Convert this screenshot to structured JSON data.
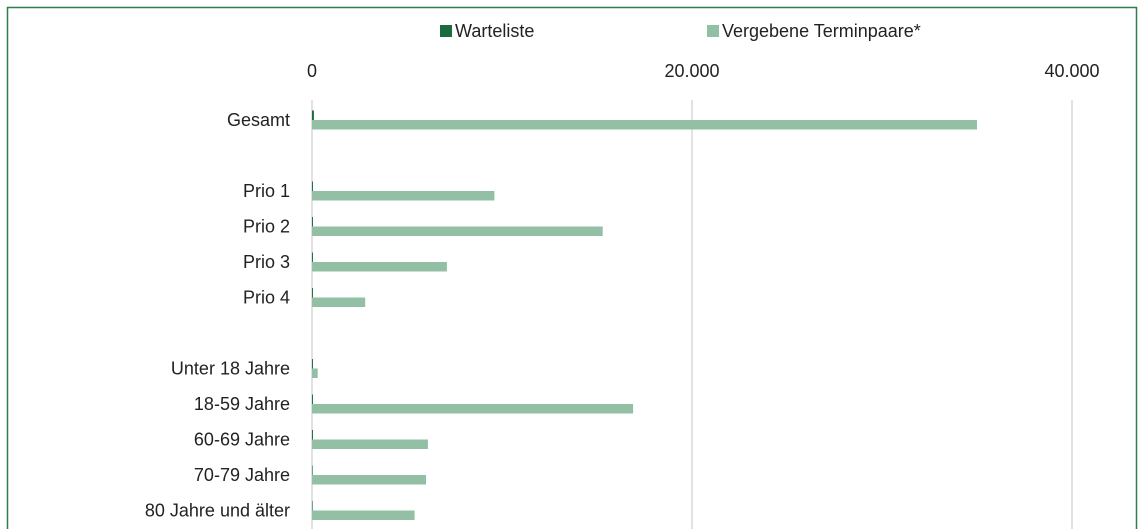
{
  "chart_data": {
    "type": "bar",
    "orientation": "horizontal",
    "categories": [
      "Gesamt",
      null,
      "Prio 1",
      "Prio 2",
      "Prio 3",
      "Prio 4",
      null,
      "Unter 18 Jahre",
      "18-59 Jahre",
      "60-69 Jahre",
      "70-79 Jahre",
      "80 Jahre und älter"
    ],
    "series": [
      {
        "name": "Warteliste",
        "color": "#1b6b3f",
        "values": [
          100,
          null,
          50,
          50,
          50,
          50,
          null,
          50,
          50,
          50,
          30,
          30
        ]
      },
      {
        "name": "Vergebene Terminpaare*",
        "color": "#93bfa4",
        "values": [
          35000,
          null,
          9600,
          15300,
          7100,
          2800,
          null,
          300,
          16900,
          6100,
          6000,
          5400
        ]
      }
    ],
    "xlim": [
      0,
      40000
    ],
    "xticks": [
      0,
      {
        "value": 20000,
        "label": "20.000"
      },
      {
        "value": 40000,
        "label": "40.000"
      }
    ],
    "grid": true,
    "legend": "top"
  }
}
